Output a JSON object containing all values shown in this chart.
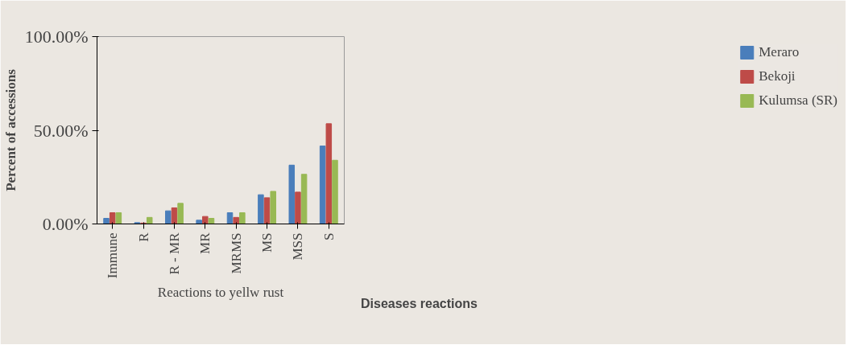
{
  "chart_data": {
    "type": "bar",
    "xlabel": "Reactions to yellw rust",
    "ylabel": "Percent of accessions",
    "annotations": [
      "Diseases reactions"
    ],
    "categories": [
      "Immune",
      "R",
      "R - MR",
      "MR",
      "MRMS",
      "MS",
      "MSS",
      "S"
    ],
    "series": [
      {
        "name": "Meraro",
        "color": "#4a7ebb",
        "values": [
          3,
          0.7,
          7,
          2,
          6,
          15.6,
          31.4,
          41.6
        ]
      },
      {
        "name": "Bekoji",
        "color": "#be4b48",
        "values": [
          6,
          0.5,
          8.6,
          4,
          3.5,
          14,
          17,
          53.5
        ]
      },
      {
        "name": "Kulumsa (SR)",
        "color": "#98b954",
        "values": [
          6,
          3.5,
          11,
          3,
          6,
          17.4,
          26.5,
          34
        ]
      }
    ],
    "ylim": [
      0,
      100
    ],
    "yticks": [
      {
        "value": 0,
        "label": "0.00%"
      },
      {
        "value": 50,
        "label": "50.00%"
      },
      {
        "value": 100,
        "label": "100.00%"
      }
    ],
    "grid": false,
    "legend": "right"
  }
}
